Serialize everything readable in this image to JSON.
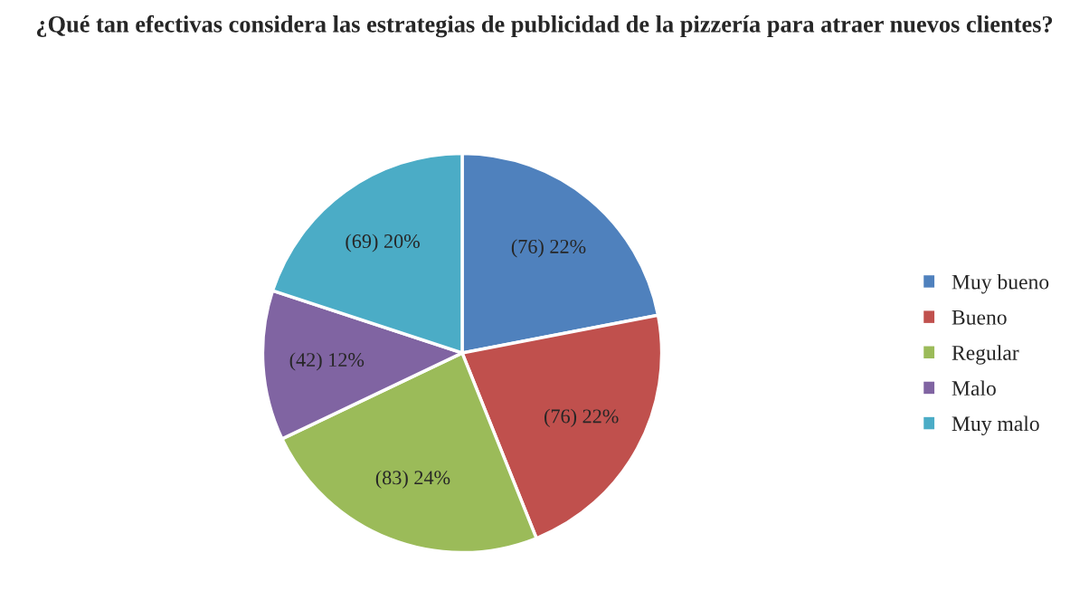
{
  "chart_data": {
    "type": "pie",
    "title": "¿Qué tan efectivas considera las estrategias de publicidad de la pizzería para atraer nuevos clientes?",
    "categories": [
      "Muy bueno",
      "Bueno",
      "Regular",
      "Malo",
      "Muy malo"
    ],
    "values": [
      76,
      76,
      83,
      42,
      69
    ],
    "value_labels": [
      "(76) 22%",
      "(76) 22%",
      "(83) 24%",
      "(42) 12%",
      "(69) 20%"
    ],
    "colors": [
      "#4f81bd",
      "#c0504d",
      "#9bbb59",
      "#8064a2",
      "#4bacc6"
    ],
    "legend": "right"
  }
}
